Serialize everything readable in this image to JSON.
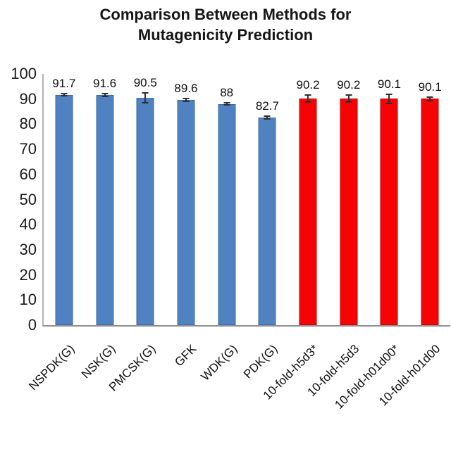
{
  "title": {
    "lines": [
      "Comparison Between Methods for",
      "Mutagenicity Prediction"
    ]
  },
  "chart_data": {
    "type": "bar",
    "title": "Comparison Between Methods for Mutagenicity Prediction",
    "categories": [
      "NSPDK(G)",
      "NSK(G)",
      "PMCSK(G)",
      "GFK",
      "WDK(G)",
      "PDK(G)",
      "10-fold-h5d3*",
      "10-fold-h5d3",
      "10-fold-h01d00*",
      "10-fold-h01d00"
    ],
    "values": [
      91.7,
      91.6,
      90.5,
      89.6,
      88,
      82.7,
      90.2,
      90.2,
      90.1,
      90.1
    ],
    "value_labels": [
      "91.7",
      "91.6",
      "90.5",
      "89.6",
      "88",
      "82.7",
      "90.2",
      "90.2",
      "90.1",
      "90.1"
    ],
    "errors": [
      0.5,
      0.5,
      2.0,
      0.6,
      0.4,
      0.6,
      1.5,
      1.5,
      1.8,
      0.8
    ],
    "colors": [
      "#5081c0",
      "#5081c0",
      "#5081c0",
      "#5081c0",
      "#5081c0",
      "#5081c0",
      "#f40404",
      "#f40404",
      "#f40404",
      "#f40404"
    ],
    "border_colors": [
      "#3d6ca8",
      "#3d6ca8",
      "#3d6ca8",
      "#3d6ca8",
      "#3d6ca8",
      "#3d6ca8",
      "#cf0000",
      "#cf0000",
      "#cf0000",
      "#cf0000"
    ],
    "group_colors": {
      "kernel_methods": "#5081c0",
      "ten_fold_methods": "#f40404"
    },
    "yticks": [
      0,
      10,
      20,
      30,
      40,
      50,
      60,
      70,
      80,
      90,
      100
    ],
    "ylim": [
      0,
      100
    ],
    "xlabel": "",
    "ylabel": "",
    "grid": false,
    "legend_position": "none",
    "error_bar_color": "#2f2f2f",
    "axis_color": "#8f8f8f",
    "background_color": "#ffffff",
    "text_color": "#111111"
  }
}
